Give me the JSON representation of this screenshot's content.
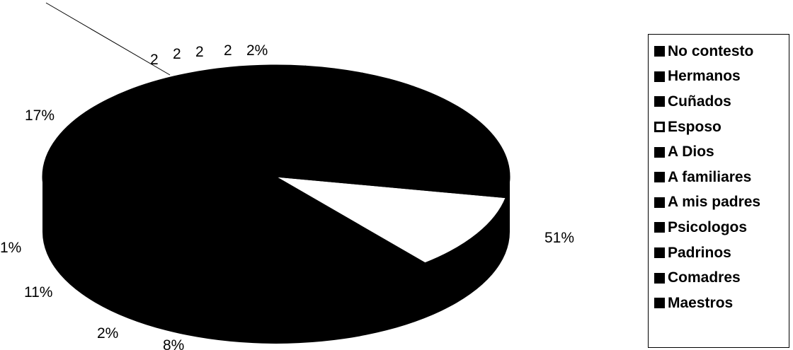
{
  "chart_data": {
    "type": "pie",
    "series": [
      {
        "label": "No contesto",
        "value": 51,
        "text": "51%",
        "color": "#000000"
      },
      {
        "label": "Hermanos",
        "value": 8,
        "text": "8%",
        "color": "#000000"
      },
      {
        "label": "Cuñados",
        "value": 2,
        "text": "2%",
        "color": "#000000"
      },
      {
        "label": "Esposo",
        "value": 11,
        "text": "11%",
        "color": "#ffffff"
      },
      {
        "label": "A Dios",
        "value": 1,
        "text": "1%",
        "color": "#000000"
      },
      {
        "label": "A familiares",
        "value": 17,
        "text": "17%",
        "color": "#000000"
      },
      {
        "label": "A mis padres",
        "value": 2,
        "text": "2",
        "color": "#000000"
      },
      {
        "label": "Psicologos",
        "value": 2,
        "text": "2",
        "color": "#000000"
      },
      {
        "label": "Padrinos",
        "value": 2,
        "text": "2",
        "color": "#000000"
      },
      {
        "label": "Comadres",
        "value": 2,
        "text": "2",
        "color": "#000000"
      },
      {
        "label": "Maestros",
        "value": 2,
        "text": "2%",
        "color": "#000000"
      }
    ],
    "legend_placement": "right"
  }
}
